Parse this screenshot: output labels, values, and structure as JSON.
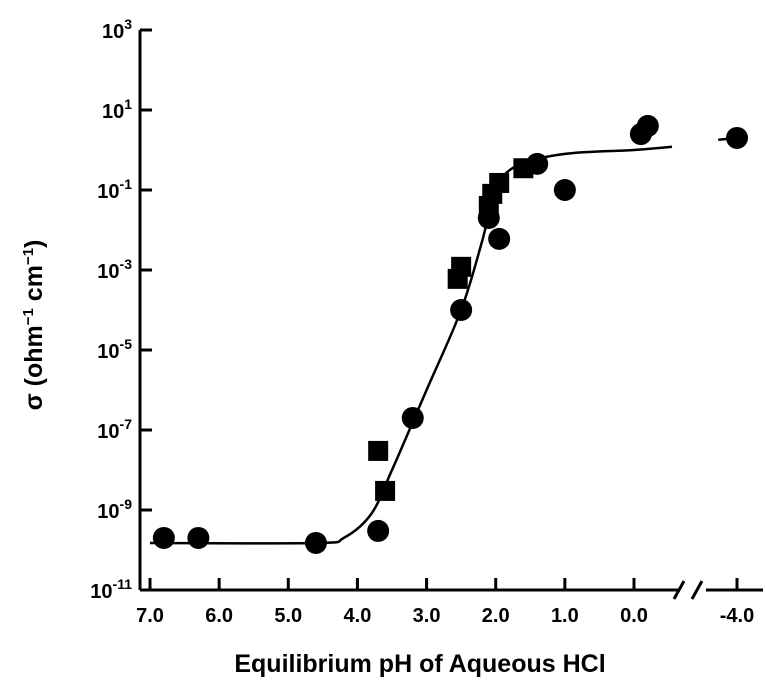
{
  "chart_data": {
    "type": "scatter",
    "title": "",
    "xlabel": "Equilibrium pH of Aqueous HCl",
    "ylabel_base": "σ (ohm",
    "ylabel_unit": " cm",
    "ylabel_sup": "−1",
    "ylabel_end": ")",
    "y_scale": "log",
    "ylim": [
      1e-11,
      1000.0
    ],
    "xlim": [
      7.0,
      -4.0
    ],
    "x_axis_break": true,
    "y_ticks": [
      {
        "label_base": "10",
        "label_exp": "3",
        "value": 1000.0
      },
      {
        "label_base": "10",
        "label_exp": "1",
        "value": 10.0
      },
      {
        "label_base": "10",
        "label_exp": "-1",
        "value": 0.1
      },
      {
        "label_base": "10",
        "label_exp": "-3",
        "value": 0.001
      },
      {
        "label_base": "10",
        "label_exp": "-5",
        "value": 1e-05
      },
      {
        "label_base": "10",
        "label_exp": "-7",
        "value": 1e-07
      },
      {
        "label_base": "10",
        "label_exp": "-9",
        "value": 1e-09
      },
      {
        "label_base": "10",
        "label_exp": "-11",
        "value": 1e-11
      }
    ],
    "x_ticks": [
      {
        "label": "7.0",
        "value": 7.0
      },
      {
        "label": "6.0",
        "value": 6.0
      },
      {
        "label": "5.0",
        "value": 5.0
      },
      {
        "label": "4.0",
        "value": 4.0
      },
      {
        "label": "3.0",
        "value": 3.0
      },
      {
        "label": "2.0",
        "value": 2.0
      },
      {
        "label": "1.0",
        "value": 1.0
      },
      {
        "label": "0.0",
        "value": 0.0
      },
      {
        "label": "-4.0",
        "value": -4.0
      }
    ],
    "series": [
      {
        "marker": "circle",
        "points": [
          {
            "x": 6.8,
            "y": 2e-10
          },
          {
            "x": 6.3,
            "y": 2e-10
          },
          {
            "x": 4.6,
            "y": 1.5e-10
          },
          {
            "x": 3.7,
            "y": 3e-10
          },
          {
            "x": 3.2,
            "y": 2e-07
          },
          {
            "x": 2.5,
            "y": 0.0001
          },
          {
            "x": 2.1,
            "y": 0.02
          },
          {
            "x": 1.95,
            "y": 0.006
          },
          {
            "x": 1.4,
            "y": 0.45
          },
          {
            "x": 1.0,
            "y": 0.1
          },
          {
            "x": -0.1,
            "y": 2.5
          },
          {
            "x": -0.2,
            "y": 4
          },
          {
            "x": -4.0,
            "y": 2
          }
        ]
      },
      {
        "marker": "square",
        "points": [
          {
            "x": 3.7,
            "y": 3e-08
          },
          {
            "x": 3.6,
            "y": 3e-09
          },
          {
            "x": 2.55,
            "y": 0.0006
          },
          {
            "x": 2.5,
            "y": 0.0012
          },
          {
            "x": 2.1,
            "y": 0.04
          },
          {
            "x": 2.05,
            "y": 0.08
          },
          {
            "x": 1.95,
            "y": 0.15
          },
          {
            "x": 1.6,
            "y": 0.35
          }
        ]
      }
    ],
    "fit_curve": [
      {
        "x": 7.0,
        "y": 1.5e-10
      },
      {
        "x": 4.6,
        "y": 1.5e-10
      },
      {
        "x": 4.2,
        "y": 2e-10
      },
      {
        "x": 3.8,
        "y": 8e-10
      },
      {
        "x": 3.5,
        "y": 1e-08
      },
      {
        "x": 3.0,
        "y": 1e-06
      },
      {
        "x": 2.5,
        "y": 0.0001
      },
      {
        "x": 2.2,
        "y": 0.005
      },
      {
        "x": 2.0,
        "y": 0.1
      },
      {
        "x": 1.7,
        "y": 0.4
      },
      {
        "x": 1.0,
        "y": 0.8
      },
      {
        "x": 0.0,
        "y": 1.0
      },
      {
        "x": -0.55,
        "y": 1.2
      },
      {
        "x": -3.0,
        "y": 1.8
      },
      {
        "x": -4.0,
        "y": 2.0
      }
    ]
  }
}
